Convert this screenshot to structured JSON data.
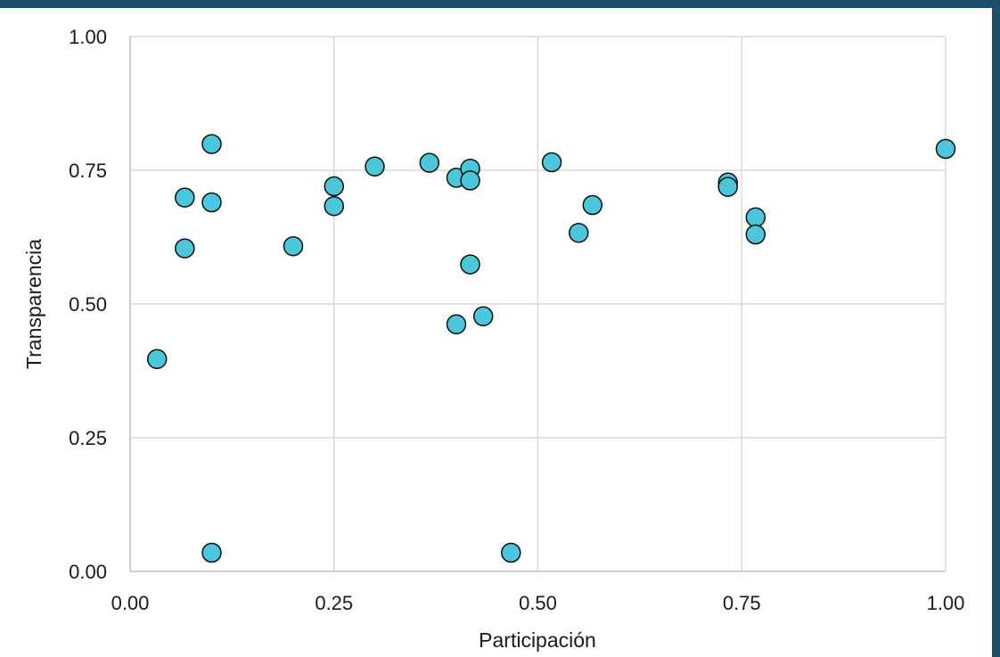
{
  "chart_data": {
    "type": "scatter",
    "title": "",
    "xlabel": "Participación",
    "ylabel": "Transparencia",
    "xlim": [
      0,
      1
    ],
    "ylim": [
      0,
      1
    ],
    "xticks": [
      "0.00",
      "0.25",
      "0.50",
      "0.75",
      "1.00"
    ],
    "yticks": [
      "0.00",
      "0.25",
      "0.50",
      "0.75",
      "1.00"
    ],
    "grid": true,
    "legend": "none",
    "marker_color": "#4ac7db",
    "marker_edge_color": "#0d0d0d",
    "x": [
      0.033,
      0.067,
      0.067,
      0.1,
      0.1,
      0.1,
      0.2,
      0.25,
      0.25,
      0.3,
      0.367,
      0.4,
      0.4,
      0.417,
      0.417,
      0.417,
      0.433,
      0.467,
      0.517,
      0.55,
      0.567,
      0.733,
      0.733,
      0.767,
      0.767,
      1.0
    ],
    "y": [
      0.397,
      0.604,
      0.699,
      0.799,
      0.69,
      0.035,
      0.608,
      0.72,
      0.683,
      0.757,
      0.764,
      0.736,
      0.462,
      0.753,
      0.731,
      0.574,
      0.477,
      0.035,
      0.765,
      0.633,
      0.685,
      0.727,
      0.719,
      0.662,
      0.63,
      0.79
    ]
  }
}
